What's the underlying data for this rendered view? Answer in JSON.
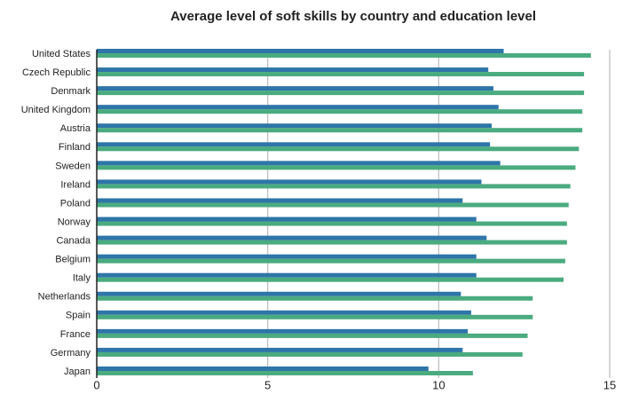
{
  "chart_data": {
    "type": "hbar",
    "title": "Average level of soft skills by country and education level",
    "categories": [
      "United States",
      "Czech Republic",
      "Denmark",
      "United Kingdom",
      "Austria",
      "Finland",
      "Sweden",
      "Ireland",
      "Poland",
      "Norway",
      "Canada",
      "Belgium",
      "Italy",
      "Netherlands",
      "Spain",
      "France",
      "Germany",
      "Japan"
    ],
    "series": [
      {
        "color": "#2e75a8",
        "values": [
          11.9,
          11.45,
          11.6,
          11.75,
          11.55,
          11.5,
          11.8,
          11.25,
          10.7,
          11.1,
          11.4,
          11.1,
          11.1,
          10.65,
          10.95,
          10.85,
          10.7,
          9.7
        ]
      },
      {
        "color": "#4aab7f",
        "values": [
          14.45,
          14.25,
          14.25,
          14.2,
          14.2,
          14.1,
          14.0,
          13.85,
          13.8,
          13.75,
          13.75,
          13.7,
          13.65,
          12.75,
          12.75,
          12.6,
          12.45,
          11.0
        ]
      }
    ],
    "xlim": [
      0,
      15
    ],
    "xticks": [
      0,
      5,
      10,
      15
    ],
    "grid": true
  }
}
